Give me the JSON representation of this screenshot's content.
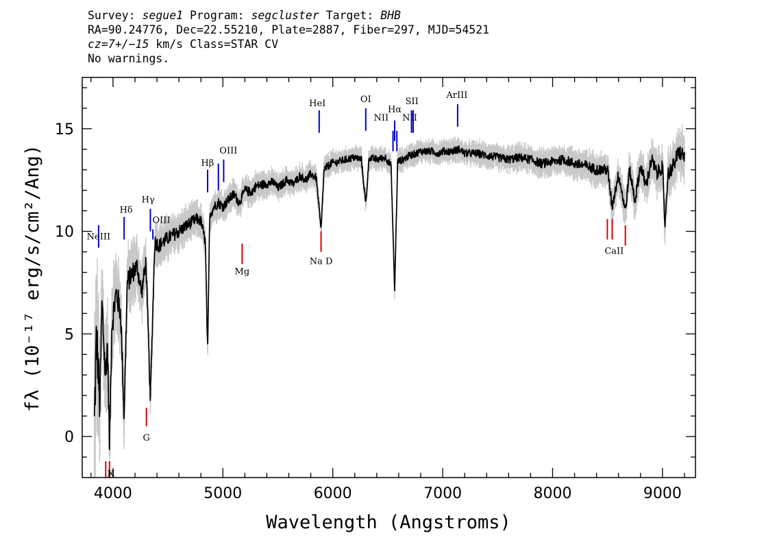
{
  "header": {
    "line1": {
      "survey_label": "Survey: ",
      "survey": "segue1",
      "program_label": " Program: ",
      "program": "segcluster",
      "target_label": " Target: ",
      "target": "BHB"
    },
    "line2": "RA=90.24776, Dec=22.55210, Plate=2887, Fiber=297, MJD=54521",
    "line3": {
      "cz": "cz=7+/−15",
      "rest": " km/s Class=STAR CV"
    },
    "line4": "No warnings."
  },
  "chart_data": {
    "type": "line",
    "xlabel": "Wavelength (Angstroms)",
    "ylabel": "fλ (10⁻¹⁷ erg/s/cm²/Ang)",
    "xlim": [
      3720,
      9300
    ],
    "ylim": [
      -2,
      17.5
    ],
    "x_ticks": [
      4000,
      5000,
      6000,
      7000,
      8000,
      9000
    ],
    "y_ticks": [
      0,
      5,
      10,
      15
    ],
    "colors": {
      "flux": "#000000",
      "error_band": "#c8c8c8",
      "emission_lines": "#0000cc",
      "absorption_lines": "#dd0000"
    },
    "series": [
      {
        "name": "flux",
        "color": "#000000",
        "x": [
          3830,
          3850,
          3880,
          3900,
          3930,
          3950,
          3968,
          3990,
          4030,
          4070,
          4101,
          4130,
          4180,
          4220,
          4260,
          4300,
          4340,
          4380,
          4420,
          4480,
          4540,
          4600,
          4650,
          4700,
          4760,
          4800,
          4840,
          4861,
          4880,
          4920,
          4960,
          5000,
          5060,
          5100,
          5150,
          5200,
          5260,
          5300,
          5380,
          5460,
          5500,
          5580,
          5640,
          5700,
          5760,
          5800,
          5850,
          5893,
          5920,
          5980,
          6060,
          6120,
          6200,
          6260,
          6300,
          6330,
          6400,
          6480,
          6530,
          6563,
          6590,
          6640,
          6700,
          6760,
          6800,
          6900,
          6960,
          7000,
          7080,
          7150,
          7200,
          7300,
          7400,
          7500,
          7600,
          7700,
          7800,
          7900,
          8000,
          8100,
          8200,
          8300,
          8400,
          8500,
          8542,
          8600,
          8662,
          8700,
          8750,
          8800,
          8850,
          8900,
          8950,
          9000,
          9020,
          9050,
          9100,
          9150,
          9200
        ],
        "y": [
          0.5,
          5.0,
          1.5,
          6.5,
          3.0,
          4.5,
          -0.3,
          5.5,
          7.0,
          6.0,
          1.0,
          7.5,
          8.0,
          8.3,
          7.0,
          8.5,
          1.8,
          9.5,
          9.3,
          9.6,
          9.8,
          10.0,
          10.2,
          10.4,
          10.6,
          10.5,
          9.5,
          4.0,
          10.8,
          11.2,
          11.4,
          11.2,
          11.6,
          11.8,
          11.4,
          12.0,
          11.9,
          12.2,
          12.3,
          12.4,
          12.1,
          12.5,
          12.3,
          12.7,
          12.5,
          12.8,
          12.6,
          10.0,
          13.0,
          13.3,
          13.4,
          13.5,
          13.6,
          13.5,
          11.3,
          13.6,
          13.5,
          13.6,
          13.2,
          7.1,
          13.4,
          13.5,
          13.7,
          13.8,
          13.9,
          13.9,
          13.8,
          13.9,
          13.9,
          14.0,
          13.8,
          13.8,
          13.7,
          13.6,
          13.5,
          13.6,
          13.5,
          13.3,
          13.4,
          13.5,
          13.3,
          13.2,
          13.0,
          13.0,
          11.2,
          12.8,
          11.0,
          13.0,
          11.5,
          13.2,
          12.2,
          13.5,
          12.8,
          13.2,
          10.2,
          12.8,
          13.2,
          13.9,
          13.6
        ]
      },
      {
        "name": "error",
        "color": "#c8c8c8",
        "x": [
          3830,
          3900,
          4000,
          4100,
          4200,
          4400,
          4600,
          4800,
          5000,
          5300,
          5600,
          5900,
          6200,
          6600,
          7000,
          7500,
          8000,
          8500,
          8800,
          9000,
          9200
        ],
        "y": [
          3.5,
          2.0,
          1.6,
          1.3,
          1.1,
          0.8,
          0.7,
          0.6,
          0.55,
          0.5,
          0.45,
          0.45,
          0.4,
          0.4,
          0.4,
          0.45,
          0.5,
          0.6,
          0.7,
          0.8,
          0.9
        ]
      }
    ],
    "emission_lines": [
      {
        "label": "NeIII",
        "wave": 3869,
        "y0": 9.2,
        "y1": 10.3,
        "lx": 3869,
        "ly": 9.6
      },
      {
        "label": "Hδ",
        "wave": 4101,
        "y0": 9.6,
        "y1": 10.7,
        "lx": 4120,
        "ly": 10.9
      },
      {
        "label": "Hγ",
        "wave": 4340,
        "y0": 10.0,
        "y1": 11.1,
        "lx": 4320,
        "ly": 11.4
      },
      {
        "label": "OIII",
        "wave": 4363,
        "y0": 9.6,
        "y1": 10.1,
        "lx": 4440,
        "ly": 10.4
      },
      {
        "label": "Hβ",
        "wave": 4861,
        "y0": 11.9,
        "y1": 13.0,
        "lx": 4860,
        "ly": 13.2
      },
      {
        "label": "OIII",
        "wave": 4959,
        "y0": 12.0,
        "y1": 13.3,
        "lx": 5050,
        "ly": 13.8
      },
      {
        "label": "OIII",
        "wave": 5007,
        "y0": 12.4,
        "y1": 13.5,
        "lx": 5050,
        "ly": 13.8
      },
      {
        "label": "HeI",
        "wave": 5876,
        "y0": 14.8,
        "y1": 15.9,
        "lx": 5860,
        "ly": 16.1
      },
      {
        "label": "OI",
        "wave": 6300,
        "y0": 14.9,
        "y1": 16.0,
        "lx": 6300,
        "ly": 16.3
      },
      {
        "label": "NII",
        "wave": 6548,
        "y0": 13.9,
        "y1": 14.9,
        "lx": 6440,
        "ly": 15.4
      },
      {
        "label": "Hα",
        "wave": 6563,
        "y0": 14.4,
        "y1": 15.4,
        "lx": 6563,
        "ly": 15.8
      },
      {
        "label": "NII",
        "wave": 6583,
        "y0": 13.9,
        "y1": 14.9,
        "lx": 6700,
        "ly": 15.4
      },
      {
        "label": "SII",
        "wave": 6716,
        "y0": 14.8,
        "y1": 15.9,
        "lx": 6720,
        "ly": 16.2
      },
      {
        "label": "SII",
        "wave": 6731,
        "y0": 14.8,
        "y1": 15.9,
        "lx": 6720,
        "ly": 16.2
      },
      {
        "label": "ArIII",
        "wave": 7136,
        "y0": 15.1,
        "y1": 16.2,
        "lx": 7130,
        "ly": 16.5
      }
    ],
    "absorption_lines": [
      {
        "label": "H",
        "wave": 3968,
        "y0": -2.0,
        "y1": -1.2,
        "lx": 3983,
        "ly": -1.95
      },
      {
        "label": "K",
        "wave": 3934,
        "y0": -2.0,
        "y1": -1.2,
        "lx": 3983,
        "ly": -1.95
      },
      {
        "label": "G",
        "wave": 4304,
        "y0": 0.5,
        "y1": 1.4,
        "lx": 4304,
        "ly": -0.2
      },
      {
        "label": "Mg",
        "wave": 5175,
        "y0": 8.4,
        "y1": 9.4,
        "lx": 5175,
        "ly": 7.9
      },
      {
        "label": "Na D",
        "wave": 5893,
        "y0": 9.0,
        "y1": 10.0,
        "lx": 5893,
        "ly": 8.4
      },
      {
        "label": "CaII",
        "wave": 8498,
        "y0": 9.6,
        "y1": 10.6,
        "lx": 8560,
        "ly": 8.9
      },
      {
        "label": "CaII",
        "wave": 8542,
        "y0": 9.6,
        "y1": 10.6,
        "lx": 8560,
        "ly": 8.9
      },
      {
        "label": "CaII",
        "wave": 8662,
        "y0": 9.3,
        "y1": 10.3,
        "lx": 8560,
        "ly": 8.9
      }
    ]
  }
}
